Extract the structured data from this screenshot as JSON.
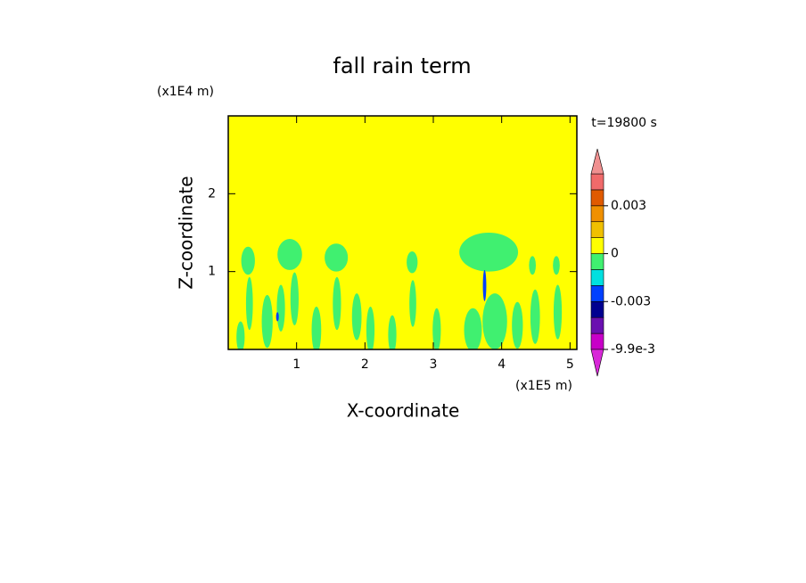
{
  "chart_data": {
    "type": "contour",
    "title": "fall rain term",
    "x_label": "X-coordinate",
    "y_label": "Z-coordinate",
    "x_unit": "(x1E5 m)",
    "y_unit": "(x1E4 m)",
    "annotation": "t=19800 s",
    "xlim": [
      0,
      5.1
    ],
    "ylim": [
      0,
      3
    ],
    "xticks": [
      1,
      2,
      3,
      4,
      5
    ],
    "yticks": [
      1,
      2
    ],
    "background_value": 0.0005,
    "colorbar": {
      "bounds": [
        -0.0099,
        -0.006,
        -0.004,
        -0.003,
        -0.002,
        -0.001,
        0,
        0.001,
        0.002,
        0.003,
        0.004,
        0.006
      ],
      "colors": [
        "#c800c8",
        "#6a10b0",
        "#000090",
        "#0040ff",
        "#00e0e0",
        "#40f070",
        "#ffff00",
        "#f0c000",
        "#f09000",
        "#e05a00",
        "#f06a6a"
      ],
      "under_color": "#d828d8",
      "over_color": "#f09090",
      "ticks": [
        {
          "value": -0.0099,
          "label": "-9.9e-3"
        },
        -0.003,
        0,
        0.003
      ]
    },
    "regions": [
      {
        "x": 0.29,
        "z": 1.14,
        "rx": 0.1,
        "rz": 0.18,
        "value": -0.0005
      },
      {
        "x": 0.9,
        "z": 1.22,
        "rx": 0.18,
        "rz": 0.2,
        "value": -0.0005
      },
      {
        "x": 1.58,
        "z": 1.18,
        "rx": 0.17,
        "rz": 0.18,
        "value": -0.0005
      },
      {
        "x": 2.69,
        "z": 1.12,
        "rx": 0.08,
        "rz": 0.14,
        "value": -0.0005
      },
      {
        "x": 3.81,
        "z": 1.25,
        "rx": 0.43,
        "rz": 0.25,
        "value": -0.0005
      },
      {
        "x": 4.45,
        "z": 1.08,
        "rx": 0.05,
        "rz": 0.12,
        "value": -0.0005
      },
      {
        "x": 4.8,
        "z": 1.08,
        "rx": 0.05,
        "rz": 0.12,
        "value": -0.0005
      },
      {
        "x": 0.31,
        "z": 0.59,
        "rx": 0.05,
        "rz": 0.34,
        "value": -0.0005
      },
      {
        "x": 0.97,
        "z": 0.65,
        "rx": 0.06,
        "rz": 0.34,
        "value": -0.0005
      },
      {
        "x": 1.59,
        "z": 0.59,
        "rx": 0.06,
        "rz": 0.34,
        "value": -0.0005
      },
      {
        "x": 0.57,
        "z": 0.36,
        "rx": 0.08,
        "rz": 0.34,
        "value": -0.0005
      },
      {
        "x": 0.77,
        "z": 0.53,
        "rx": 0.06,
        "rz": 0.3,
        "value": -0.0005
      },
      {
        "x": 1.29,
        "z": 0.25,
        "rx": 0.07,
        "rz": 0.3,
        "value": -0.0005
      },
      {
        "x": 1.88,
        "z": 0.42,
        "rx": 0.07,
        "rz": 0.3,
        "value": -0.0005
      },
      {
        "x": 2.08,
        "z": 0.25,
        "rx": 0.06,
        "rz": 0.3,
        "value": -0.0005
      },
      {
        "x": 2.4,
        "z": 0.19,
        "rx": 0.06,
        "rz": 0.25,
        "value": -0.0005
      },
      {
        "x": 2.7,
        "z": 0.59,
        "rx": 0.05,
        "rz": 0.3,
        "value": -0.0005
      },
      {
        "x": 3.05,
        "z": 0.25,
        "rx": 0.06,
        "rz": 0.28,
        "value": -0.0005
      },
      {
        "x": 3.58,
        "z": 0.25,
        "rx": 0.13,
        "rz": 0.28,
        "value": -0.0005
      },
      {
        "x": 3.9,
        "z": 0.36,
        "rx": 0.18,
        "rz": 0.36,
        "value": -0.0005
      },
      {
        "x": 4.23,
        "z": 0.31,
        "rx": 0.08,
        "rz": 0.3,
        "value": -0.0005
      },
      {
        "x": 4.49,
        "z": 0.42,
        "rx": 0.07,
        "rz": 0.35,
        "value": -0.0005
      },
      {
        "x": 4.82,
        "z": 0.48,
        "rx": 0.06,
        "rz": 0.35,
        "value": -0.0005
      },
      {
        "x": 0.18,
        "z": 0.16,
        "rx": 0.06,
        "rz": 0.2,
        "value": -0.0005
      },
      {
        "x": 3.75,
        "z": 0.82,
        "rx": 0.025,
        "rz": 0.2,
        "value": -0.0025
      },
      {
        "x": 0.72,
        "z": 0.42,
        "rx": 0.02,
        "rz": 0.06,
        "value": -0.0025
      }
    ]
  }
}
